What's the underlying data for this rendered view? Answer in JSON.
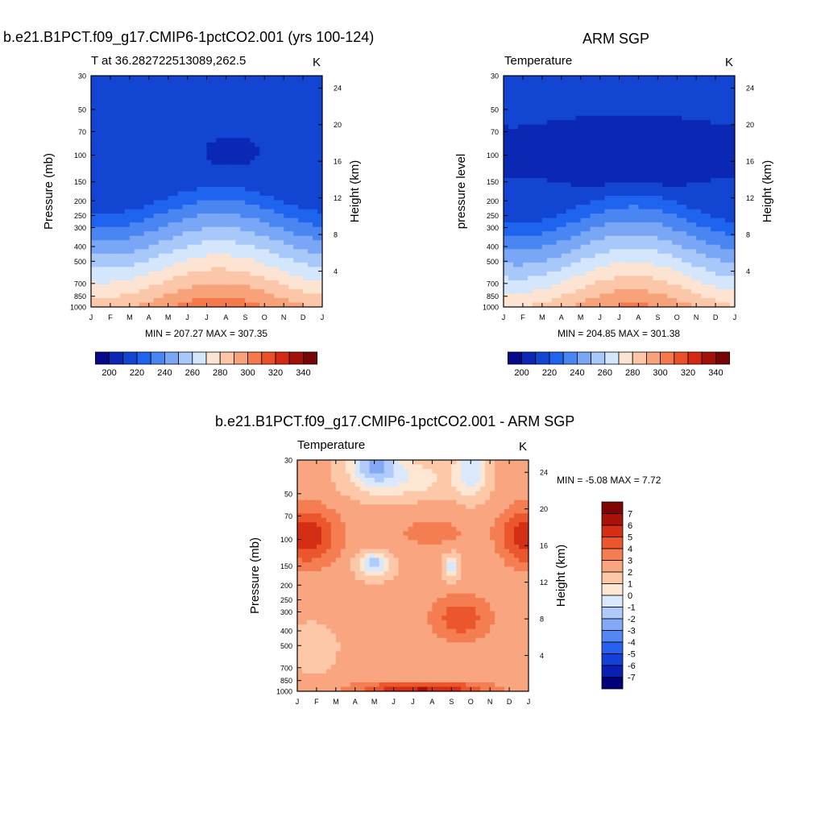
{
  "colors": {
    "temp_colorbar": [
      "#08088a",
      "#0a28b4",
      "#1246d2",
      "#1e64ee",
      "#4a86f2",
      "#7aa6f6",
      "#a8c8fa",
      "#d4e6fc",
      "#fde4d2",
      "#fcc6a8",
      "#f8a27a",
      "#f47a4c",
      "#ec5028",
      "#d42a14",
      "#a41008",
      "#7a0404"
    ],
    "diff_colorbar": [
      "#00007a",
      "#0a20b4",
      "#1440d8",
      "#2a60f0",
      "#5486f4",
      "#82a8f6",
      "#b0cafa",
      "#dae8fc",
      "#fde6d2",
      "#fcc8a8",
      "#f9a680",
      "#f47e52",
      "#ec562c",
      "#d42e14",
      "#a81208",
      "#7e0606"
    ]
  },
  "chart_data": [
    {
      "id": "model",
      "type": "heatmap",
      "title": "b.e21.B1PCT.f09_g17.CMIP6-1pctCO2.001 (yrs 100-124)",
      "subtitle_left": "T at 36.282722513089,262.5",
      "subtitle_right": "K",
      "ylabel": "Pressure (mb)",
      "ylabel_right": "Height (km)",
      "x_ticks": [
        "J",
        "F",
        "M",
        "A",
        "M",
        "J",
        "J",
        "A",
        "S",
        "O",
        "N",
        "D",
        "J"
      ],
      "y_ticks": [
        30,
        50,
        70,
        100,
        150,
        200,
        250,
        300,
        400,
        500,
        700,
        850,
        1000
      ],
      "y_right_ticks": [
        24,
        20,
        16,
        12,
        8,
        4
      ],
      "stats": "MIN = 207.27 MAX = 307.35",
      "min": 207.27,
      "max": 307.35,
      "colorbar_labels": [
        200,
        220,
        240,
        260,
        280,
        300,
        320,
        340
      ],
      "levels": [
        200,
        210,
        220,
        230,
        240,
        250,
        260,
        270,
        280,
        290,
        300,
        310,
        320,
        330,
        340
      ]
    },
    {
      "id": "obs",
      "type": "heatmap",
      "title": "ARM SGP",
      "subtitle_left": "Temperature",
      "subtitle_right": "K",
      "ylabel": "pressure level",
      "ylabel_right": "Height (km)",
      "x_ticks": [
        "J",
        "F",
        "M",
        "A",
        "M",
        "J",
        "J",
        "A",
        "S",
        "O",
        "N",
        "D",
        "J"
      ],
      "y_ticks": [
        30,
        50,
        70,
        100,
        150,
        200,
        250,
        300,
        400,
        500,
        700,
        850,
        1000
      ],
      "y_right_ticks": [
        24,
        20,
        16,
        12,
        8,
        4
      ],
      "stats": "MIN = 204.85 MAX = 301.38",
      "min": 204.85,
      "max": 301.38,
      "colorbar_labels": [
        200,
        220,
        240,
        260,
        280,
        300,
        320,
        340
      ],
      "levels": [
        200,
        210,
        220,
        230,
        240,
        250,
        260,
        270,
        280,
        290,
        300,
        310,
        320,
        330,
        340
      ]
    },
    {
      "id": "diff",
      "type": "heatmap",
      "title": "b.e21.B1PCT.f09_g17.CMIP6-1pctCO2.001 - ARM SGP",
      "subtitle_left": "Temperature",
      "subtitle_right": "K",
      "ylabel": "Pressure (mb)",
      "ylabel_right": "Height (km)",
      "x_ticks": [
        "J",
        "F",
        "M",
        "A",
        "M",
        "J",
        "J",
        "A",
        "S",
        "O",
        "N",
        "D",
        "J"
      ],
      "y_ticks": [
        30,
        50,
        70,
        100,
        150,
        200,
        250,
        300,
        400,
        500,
        700,
        850,
        1000
      ],
      "y_right_ticks": [
        24,
        20,
        16,
        12,
        8,
        4
      ],
      "stats": "MIN =  -5.08 MAX =   7.72",
      "min": -5.08,
      "max": 7.72,
      "colorbar_labels": [
        7,
        6,
        5,
        4,
        3,
        2,
        1,
        0,
        -1,
        -2,
        -3,
        -4,
        -5,
        -6,
        -7
      ],
      "levels": [
        -7,
        -6,
        -5,
        -4,
        -3,
        -2,
        -1,
        0,
        1,
        2,
        3,
        4,
        5,
        6,
        7
      ]
    }
  ]
}
